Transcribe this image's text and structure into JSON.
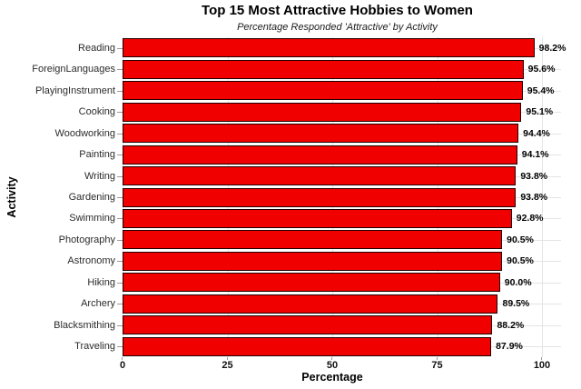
{
  "chart_data": {
    "type": "bar",
    "orientation": "horizontal",
    "title": "Top 15 Most Attractive Hobbies to Women",
    "subtitle": "Percentage Responded 'Attractive' by Activity",
    "xlabel": "Percentage",
    "ylabel": "Activity",
    "xlim": [
      0,
      100
    ],
    "xticks": [
      "0",
      "25",
      "50",
      "75",
      "100"
    ],
    "xtick_values": [
      0,
      25,
      50,
      75,
      100
    ],
    "grid": true,
    "legend": "none",
    "categories": [
      "Reading",
      "ForeignLanguages",
      "PlayingInstrument",
      "Cooking",
      "Woodworking",
      "Painting",
      "Writing",
      "Gardening",
      "Swimming",
      "Photography",
      "Astronomy",
      "Hiking",
      "Archery",
      "Blacksmithing",
      "Traveling"
    ],
    "values": [
      98.2,
      95.6,
      95.4,
      95.1,
      94.4,
      94.1,
      93.8,
      93.8,
      92.8,
      90.5,
      90.5,
      90.0,
      89.5,
      88.2,
      87.9
    ],
    "value_labels": [
      "98.2%",
      "95.6%",
      "95.4%",
      "95.1%",
      "94.4%",
      "94.1%",
      "93.8%",
      "93.8%",
      "92.8%",
      "90.5%",
      "90.5%",
      "90.0%",
      "89.5%",
      "88.2%",
      "87.9%"
    ],
    "colors": {
      "bar_fill": "#f10000",
      "bar_border": "#200000",
      "gridline": "#e4e4e4",
      "tick_mark": "#9a9a9a",
      "category_text": "#2b2b2b",
      "label_text": "#000000",
      "background": "#ffffff"
    }
  }
}
